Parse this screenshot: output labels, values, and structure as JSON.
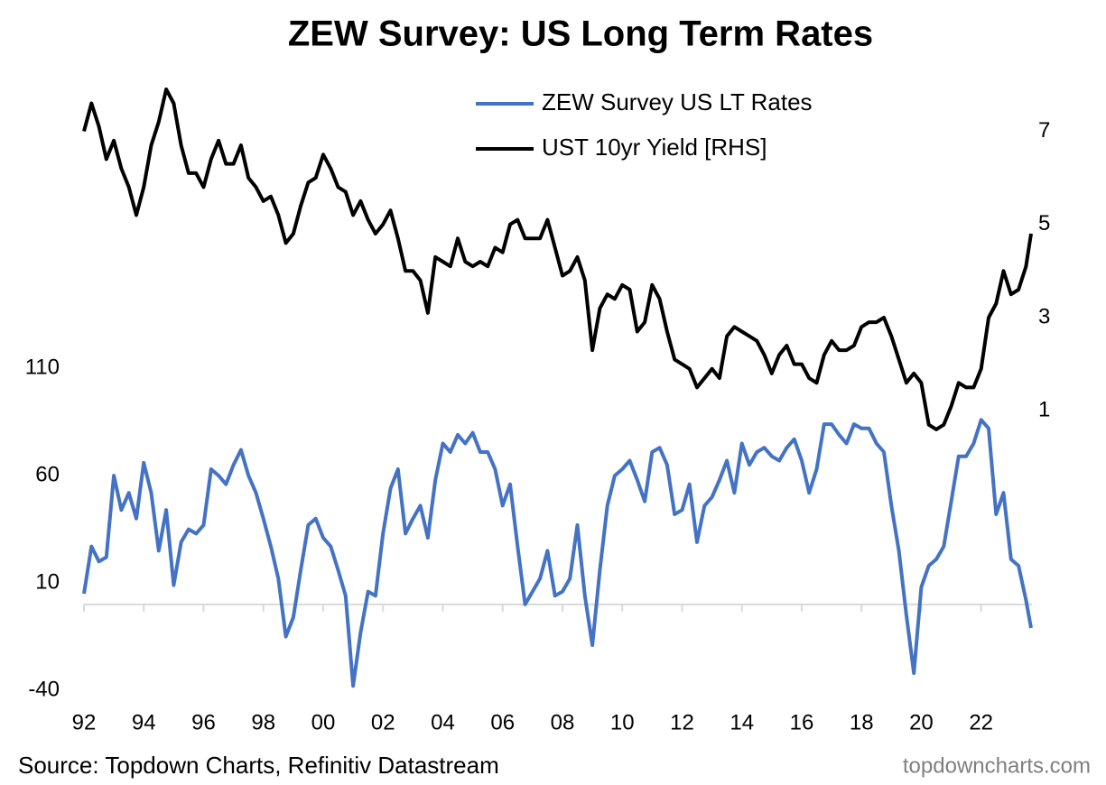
{
  "chart_data": {
    "type": "line",
    "title": "ZEW Survey: US Long Term Rates",
    "source": "Source: Topdown Charts, Refinitiv Datastream",
    "credit": "topdowncharts.com",
    "legend": "upper center",
    "grid": false,
    "xlim": [
      1992,
      2023.7
    ],
    "xticks": [
      {
        "value": 1992,
        "label": "92"
      },
      {
        "value": 1994,
        "label": "94"
      },
      {
        "value": 1996,
        "label": "96"
      },
      {
        "value": 1998,
        "label": "98"
      },
      {
        "value": 2000,
        "label": "00"
      },
      {
        "value": 2002,
        "label": "02"
      },
      {
        "value": 2004,
        "label": "04"
      },
      {
        "value": 2006,
        "label": "06"
      },
      {
        "value": 2008,
        "label": "08"
      },
      {
        "value": 2010,
        "label": "10"
      },
      {
        "value": 2012,
        "label": "12"
      },
      {
        "value": 2014,
        "label": "14"
      },
      {
        "value": 2016,
        "label": "16"
      },
      {
        "value": 2018,
        "label": "18"
      },
      {
        "value": 2020,
        "label": "20"
      },
      {
        "value": 2022,
        "label": "22"
      }
    ],
    "ylim": [
      -40,
      240
    ],
    "yticks": [
      -40,
      10,
      60,
      110
    ],
    "y2lim": [
      -5,
      7.9
    ],
    "y2ticks": [
      1,
      3,
      5,
      7
    ],
    "x": [
      1992,
      1992.25,
      1992.5,
      1992.75,
      1993,
      1993.25,
      1993.5,
      1993.75,
      1994,
      1994.25,
      1994.5,
      1994.75,
      1995,
      1995.25,
      1995.5,
      1995.75,
      1996,
      1996.25,
      1996.5,
      1996.75,
      1997,
      1997.25,
      1997.5,
      1997.75,
      1998,
      1998.25,
      1998.5,
      1998.75,
      1999,
      1999.25,
      1999.5,
      1999.75,
      2000,
      2000.25,
      2000.5,
      2000.75,
      2001,
      2001.25,
      2001.5,
      2001.75,
      2002,
      2002.25,
      2002.5,
      2002.75,
      2003,
      2003.25,
      2003.5,
      2003.75,
      2004,
      2004.25,
      2004.5,
      2004.75,
      2005,
      2005.25,
      2005.5,
      2005.75,
      2006,
      2006.25,
      2006.5,
      2006.75,
      2007,
      2007.25,
      2007.5,
      2007.75,
      2008,
      2008.25,
      2008.5,
      2008.75,
      2009,
      2009.25,
      2009.5,
      2009.75,
      2010,
      2010.25,
      2010.5,
      2010.75,
      2011,
      2011.25,
      2011.5,
      2011.75,
      2012,
      2012.25,
      2012.5,
      2012.75,
      2013,
      2013.25,
      2013.5,
      2013.75,
      2014,
      2014.25,
      2014.5,
      2014.75,
      2015,
      2015.25,
      2015.5,
      2015.75,
      2016,
      2016.25,
      2016.5,
      2016.75,
      2017,
      2017.25,
      2017.5,
      2017.75,
      2018,
      2018.25,
      2018.5,
      2018.75,
      2019,
      2019.25,
      2019.5,
      2019.75,
      2020,
      2020.25,
      2020.5,
      2020.75,
      2021,
      2021.25,
      2021.5,
      2021.75,
      2022,
      2022.25,
      2022.5,
      2022.75,
      2023,
      2023.25,
      2023.5,
      2023.67
    ],
    "series": [
      {
        "name": "ZEW Survey US LT Rates",
        "color": "#4472c4",
        "axis": "y",
        "values": [
          5,
          27,
          20,
          22,
          60,
          44,
          52,
          40,
          66,
          52,
          25,
          44,
          9,
          29,
          35,
          33,
          37,
          63,
          60,
          56,
          65,
          72,
          60,
          52,
          40,
          27,
          12,
          -15,
          -6,
          16,
          37,
          40,
          31,
          27,
          16,
          4,
          -38,
          -13,
          6,
          4,
          33,
          54,
          63,
          33,
          40,
          46,
          31,
          58,
          75,
          71,
          79,
          75,
          80,
          71,
          71,
          63,
          46,
          56,
          27,
          0,
          6,
          12,
          25,
          4,
          6,
          12,
          37,
          4,
          -19,
          16,
          46,
          60,
          63,
          67,
          58,
          48,
          71,
          73,
          65,
          42,
          44,
          56,
          29,
          46,
          50,
          58,
          67,
          52,
          75,
          65,
          71,
          73,
          69,
          67,
          73,
          77,
          67,
          52,
          63,
          84,
          84,
          79,
          75,
          84,
          82,
          82,
          75,
          71,
          46,
          25,
          -5,
          -32,
          8,
          18,
          21,
          27,
          48,
          69,
          69,
          75,
          86,
          82,
          42,
          52,
          21,
          18,
          2,
          -11
        ]
      },
      {
        "name": "UST 10yr Yield [RHS]",
        "color": "#000000",
        "axis": "y2",
        "values": [
          7.0,
          7.6,
          7.1,
          6.4,
          6.8,
          6.2,
          5.8,
          5.2,
          5.8,
          6.7,
          7.2,
          7.9,
          7.6,
          6.7,
          6.1,
          6.1,
          5.8,
          6.4,
          6.8,
          6.3,
          6.3,
          6.7,
          6.0,
          5.8,
          5.5,
          5.6,
          5.2,
          4.6,
          4.8,
          5.4,
          5.9,
          6.0,
          6.5,
          6.2,
          5.8,
          5.7,
          5.2,
          5.5,
          5.1,
          4.8,
          5.0,
          5.3,
          4.7,
          4.0,
          4.0,
          3.8,
          3.1,
          4.3,
          4.2,
          4.1,
          4.7,
          4.2,
          4.1,
          4.2,
          4.1,
          4.5,
          4.4,
          5.0,
          5.1,
          4.7,
          4.7,
          4.7,
          5.1,
          4.5,
          3.9,
          4.0,
          4.3,
          3.8,
          2.3,
          3.2,
          3.5,
          3.4,
          3.7,
          3.6,
          2.7,
          2.9,
          3.7,
          3.4,
          2.7,
          2.1,
          2.0,
          1.9,
          1.5,
          1.7,
          1.9,
          1.7,
          2.6,
          2.8,
          2.7,
          2.6,
          2.5,
          2.2,
          1.8,
          2.2,
          2.4,
          2.0,
          2.0,
          1.7,
          1.6,
          2.2,
          2.5,
          2.3,
          2.3,
          2.4,
          2.8,
          2.9,
          2.9,
          3.0,
          2.6,
          2.1,
          1.6,
          1.8,
          1.6,
          0.7,
          0.6,
          0.7,
          1.1,
          1.6,
          1.5,
          1.5,
          1.9,
          3.0,
          3.3,
          4.0,
          3.5,
          3.6,
          4.1,
          4.8
        ]
      }
    ]
  }
}
